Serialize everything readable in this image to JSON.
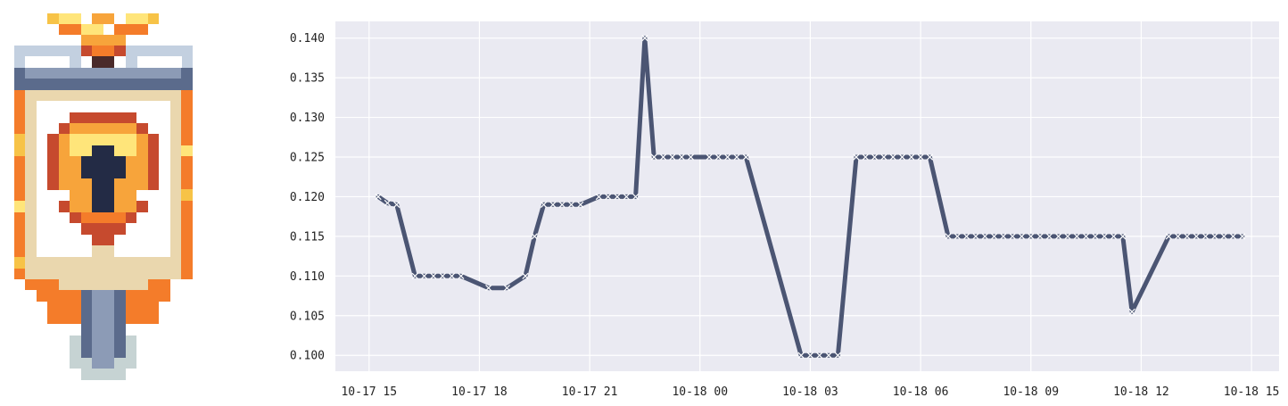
{
  "logo": {
    "icon": "pixel-banner-shield-icon"
  },
  "chart_data": {
    "type": "line",
    "title": "",
    "xlabel": "",
    "ylabel": "",
    "x_tick_labels": [
      "10-17 15",
      "10-17 18",
      "10-17 21",
      "10-18 00",
      "10-18 03",
      "10-18 06",
      "10-18 09",
      "10-18 12",
      "10-18 15"
    ],
    "y_tick_labels": [
      "0.100",
      "0.105",
      "0.110",
      "0.115",
      "0.120",
      "0.125",
      "0.130",
      "0.135",
      "0.140"
    ],
    "xlim": [
      "2023-10-17T14:05",
      "2023-10-18T15:45"
    ],
    "ylim": [
      0.098,
      0.1421
    ],
    "grid": true,
    "colors": {
      "line": "#4b5573",
      "marker": "#ffffff",
      "plot_bg": "#eaeaf2",
      "grid": "#ffffff"
    },
    "series": [
      {
        "marker": "x",
        "points": [
          [
            "2023-10-17T15:15",
            0.12
          ],
          [
            "2023-10-17T15:30",
            0.1192
          ],
          [
            "2023-10-17T15:45",
            0.119
          ],
          [
            "2023-10-17T16:15",
            0.11
          ],
          [
            "2023-10-17T16:30",
            0.11
          ],
          [
            "2023-10-17T16:45",
            0.11
          ],
          [
            "2023-10-17T17:00",
            0.11
          ],
          [
            "2023-10-17T17:15",
            0.11
          ],
          [
            "2023-10-17T17:30",
            0.11
          ],
          [
            "2023-10-17T18:15",
            0.1085
          ],
          [
            "2023-10-17T18:45",
            0.1085
          ],
          [
            "2023-10-17T19:15",
            0.11
          ],
          [
            "2023-10-17T19:30",
            0.115
          ],
          [
            "2023-10-17T19:45",
            0.119
          ],
          [
            "2023-10-17T20:00",
            0.119
          ],
          [
            "2023-10-17T20:15",
            0.119
          ],
          [
            "2023-10-17T20:30",
            0.119
          ],
          [
            "2023-10-17T20:45",
            0.119
          ],
          [
            "2023-10-17T21:15",
            0.12
          ],
          [
            "2023-10-17T21:30",
            0.12
          ],
          [
            "2023-10-17T21:45",
            0.12
          ],
          [
            "2023-10-17T22:00",
            0.12
          ],
          [
            "2023-10-17T22:15",
            0.12
          ],
          [
            "2023-10-17T22:30",
            0.14
          ],
          [
            "2023-10-17T22:45",
            0.125
          ],
          [
            "2023-10-17T23:00",
            0.125
          ],
          [
            "2023-10-17T23:15",
            0.125
          ],
          [
            "2023-10-17T23:30",
            0.125
          ],
          [
            "2023-10-17T23:45",
            0.125
          ],
          [
            "2023-10-18T00:15",
            0.125
          ],
          [
            "2023-10-18T00:30",
            0.125
          ],
          [
            "2023-10-18T00:45",
            0.125
          ],
          [
            "2023-10-18T01:00",
            0.125
          ],
          [
            "2023-10-18T01:15",
            0.125
          ],
          [
            "2023-10-18T02:45",
            0.1
          ],
          [
            "2023-10-18T03:00",
            0.1
          ],
          [
            "2023-10-18T03:15",
            0.1
          ],
          [
            "2023-10-18T03:30",
            0.1
          ],
          [
            "2023-10-18T03:45",
            0.1
          ],
          [
            "2023-10-18T04:15",
            0.125
          ],
          [
            "2023-10-18T04:30",
            0.125
          ],
          [
            "2023-10-18T04:45",
            0.125
          ],
          [
            "2023-10-18T05:00",
            0.125
          ],
          [
            "2023-10-18T05:15",
            0.125
          ],
          [
            "2023-10-18T05:30",
            0.125
          ],
          [
            "2023-10-18T05:45",
            0.125
          ],
          [
            "2023-10-18T06:00",
            0.125
          ],
          [
            "2023-10-18T06:15",
            0.125
          ],
          [
            "2023-10-18T06:45",
            0.115
          ],
          [
            "2023-10-18T07:00",
            0.115
          ],
          [
            "2023-10-18T07:15",
            0.115
          ],
          [
            "2023-10-18T07:30",
            0.115
          ],
          [
            "2023-10-18T07:45",
            0.115
          ],
          [
            "2023-10-18T08:00",
            0.115
          ],
          [
            "2023-10-18T08:15",
            0.115
          ],
          [
            "2023-10-18T08:30",
            0.115
          ],
          [
            "2023-10-18T08:45",
            0.115
          ],
          [
            "2023-10-18T09:00",
            0.115
          ],
          [
            "2023-10-18T09:15",
            0.115
          ],
          [
            "2023-10-18T09:30",
            0.115
          ],
          [
            "2023-10-18T09:45",
            0.115
          ],
          [
            "2023-10-18T10:00",
            0.115
          ],
          [
            "2023-10-18T10:15",
            0.115
          ],
          [
            "2023-10-18T10:30",
            0.115
          ],
          [
            "2023-10-18T10:45",
            0.115
          ],
          [
            "2023-10-18T11:00",
            0.115
          ],
          [
            "2023-10-18T11:15",
            0.115
          ],
          [
            "2023-10-18T11:30",
            0.115
          ],
          [
            "2023-10-18T11:45",
            0.1055
          ],
          [
            "2023-10-18T12:45",
            0.115
          ],
          [
            "2023-10-18T13:00",
            0.115
          ],
          [
            "2023-10-18T13:15",
            0.115
          ],
          [
            "2023-10-18T13:30",
            0.115
          ],
          [
            "2023-10-18T13:45",
            0.115
          ],
          [
            "2023-10-18T14:00",
            0.115
          ],
          [
            "2023-10-18T14:15",
            0.115
          ],
          [
            "2023-10-18T14:30",
            0.115
          ],
          [
            "2023-10-18T14:45",
            0.115
          ]
        ]
      }
    ]
  }
}
